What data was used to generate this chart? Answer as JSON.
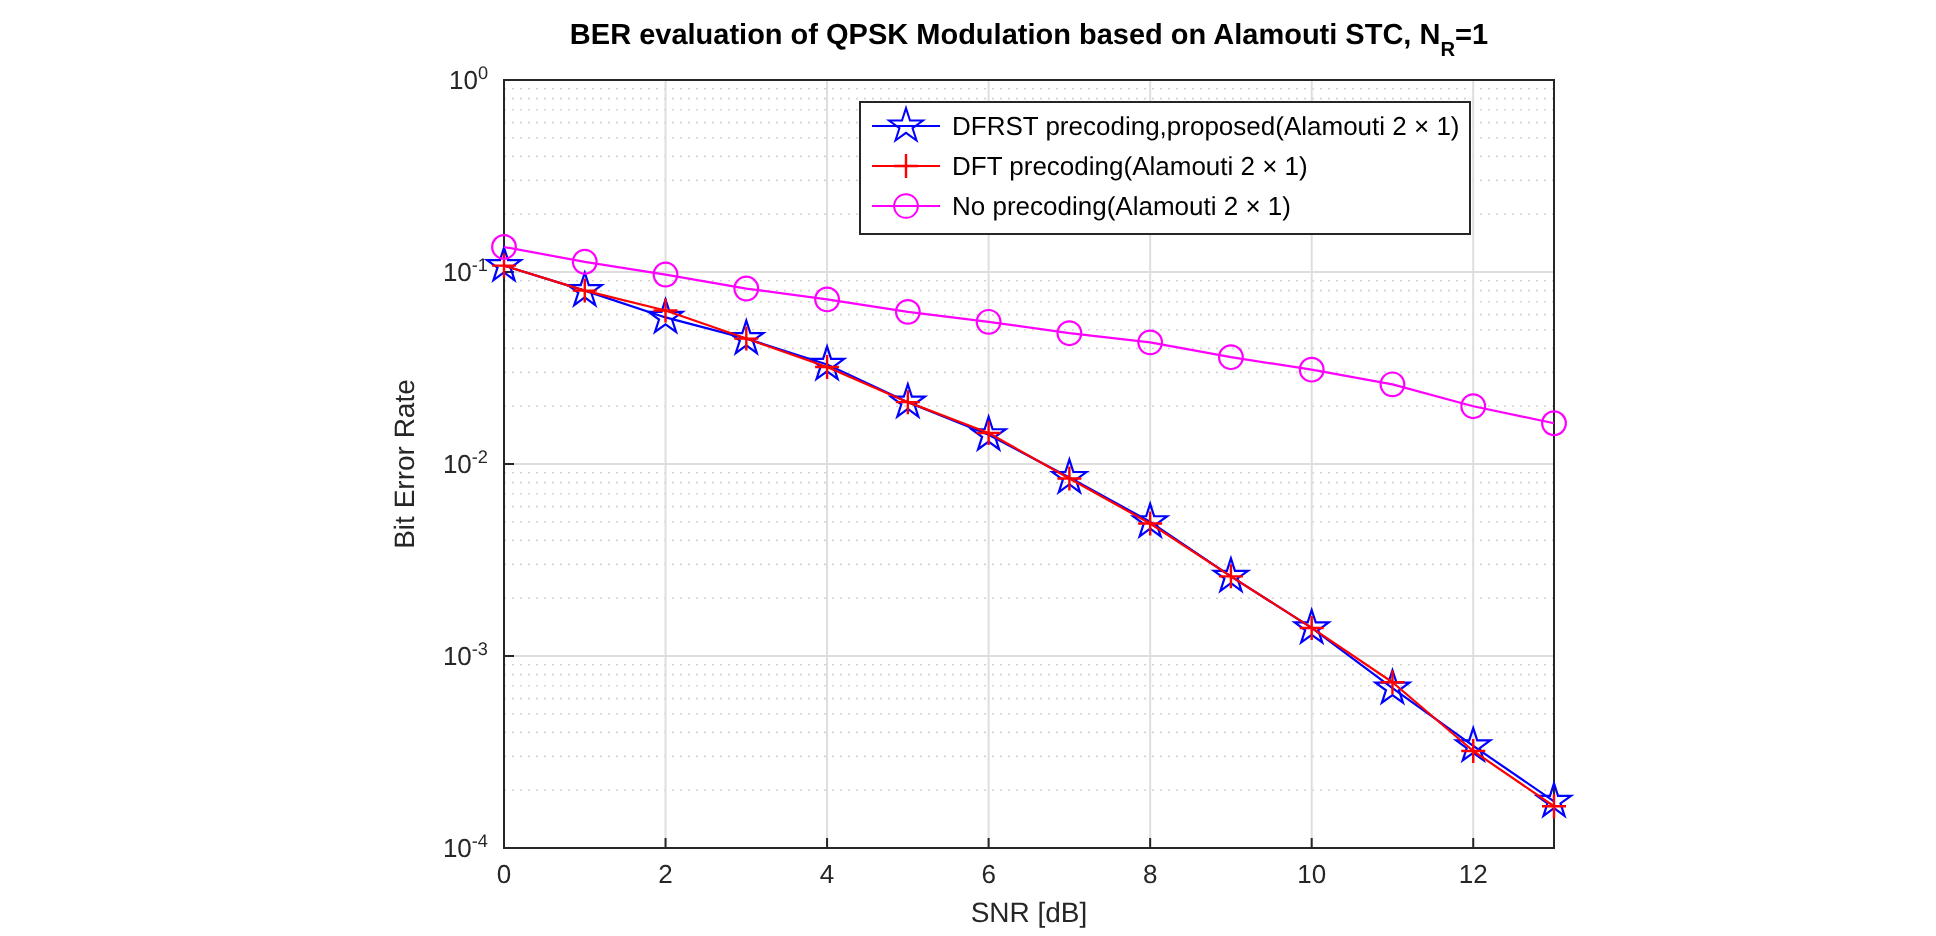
{
  "chart_data": {
    "type": "line",
    "title": "BER evaluation of QPSK Modulation based on Alamouti STC, N$_{R}$=1",
    "xlabel": "SNR  [dB]",
    "ylabel": "Bit Error Rate",
    "log": "y",
    "grid": true,
    "legend": "top right",
    "x": [
      0,
      1,
      2,
      3,
      4,
      5,
      6,
      7,
      8,
      9,
      10,
      11,
      12,
      13
    ],
    "xlim": [
      0,
      13
    ],
    "xticks": [
      0,
      2,
      4,
      6,
      8,
      10,
      12
    ],
    "ylim": [
      0.0001,
      1
    ],
    "yticks": [
      {
        "value": 0.0001,
        "label": "10$^{-4}$"
      },
      {
        "value": 0.001,
        "label": "10$^{-3}$"
      },
      {
        "value": 0.01,
        "label": "10$^{-2}$"
      },
      {
        "value": 0.1,
        "label": "10$^{-1}$"
      },
      {
        "value": 1,
        "label": "10$^{0}$"
      }
    ],
    "series": [
      {
        "name": "DFRST precoding,proposed(Alamouti 2 × 1)",
        "color": "#0000ff",
        "marker": "star",
        "values": [
          0.108,
          0.08,
          0.058,
          0.045,
          0.033,
          0.021,
          0.0142,
          0.0085,
          0.005,
          0.0026,
          0.0014,
          0.00068,
          0.00034,
          0.000175
        ]
      },
      {
        "name": "DFT precoding(Alamouti 2 × 1)",
        "color": "#ff0000",
        "marker": "cross",
        "values": [
          0.108,
          0.08,
          0.063,
          0.045,
          0.032,
          0.021,
          0.0145,
          0.0084,
          0.0049,
          0.0026,
          0.0014,
          0.00073,
          0.00032,
          0.000165
        ]
      },
      {
        "name": "No precoding(Alamouti 2 × 1)",
        "color": "#ff00ff",
        "marker": "circle",
        "values": [
          0.135,
          0.113,
          0.097,
          0.082,
          0.072,
          0.062,
          0.055,
          0.048,
          0.043,
          0.036,
          0.031,
          0.026,
          0.02,
          0.0163
        ]
      }
    ]
  }
}
